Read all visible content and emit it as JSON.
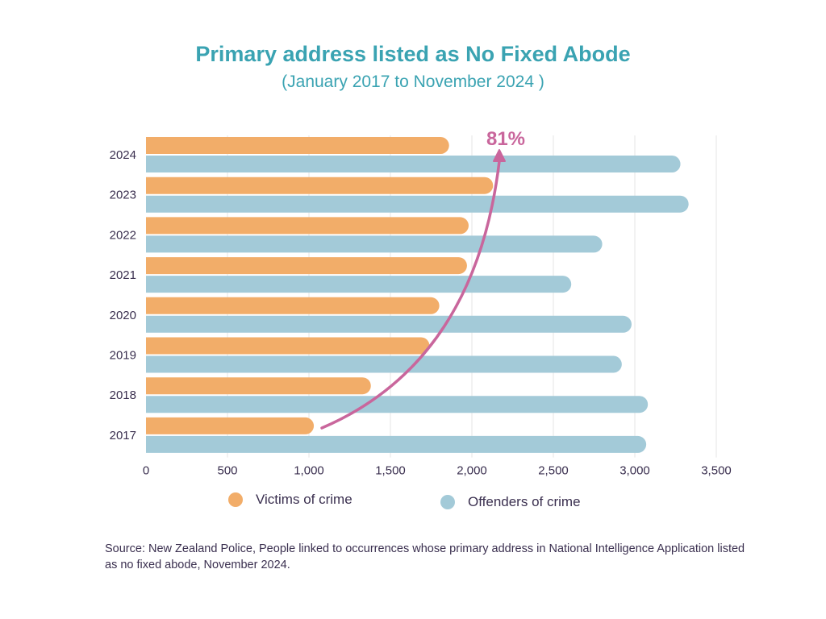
{
  "title": "Primary address listed as No Fixed Abode",
  "subtitle": "(January 2017 to November 2024 )",
  "source": "Source: New Zealand Police, People linked to occurrences whose primary address in National Intelligence Application listed as no fixed abode, November 2024.",
  "annotation": "81%",
  "colors": {
    "victims": "#f2ad69",
    "offenders": "#a3cad8",
    "arrow": "#c9669c",
    "title": "#3aa3b2",
    "text": "#3a2f4f",
    "grid": "#e6e6e6"
  },
  "legend": {
    "victims_label": "Victims of crime",
    "offenders_label": "Offenders of crime"
  },
  "chart_data": {
    "type": "bar",
    "orientation": "horizontal",
    "categories": [
      "2024",
      "2023",
      "2022",
      "2021",
      "2020",
      "2019",
      "2018",
      "2017"
    ],
    "series": [
      {
        "name": "Victims of crime",
        "values": [
          1860,
          2130,
          1980,
          1970,
          1800,
          1740,
          1380,
          1030
        ]
      },
      {
        "name": "Offenders of crime",
        "values": [
          3280,
          3330,
          2800,
          2610,
          2980,
          2920,
          3080,
          3070
        ]
      }
    ],
    "xlim": [
      0,
      3500
    ],
    "xticks": [
      "0",
      "500",
      "1,000",
      "1,500",
      "2,000",
      "2,500",
      "3,000",
      "3,500"
    ],
    "grid": "vertical",
    "legend_position": "bottom"
  }
}
